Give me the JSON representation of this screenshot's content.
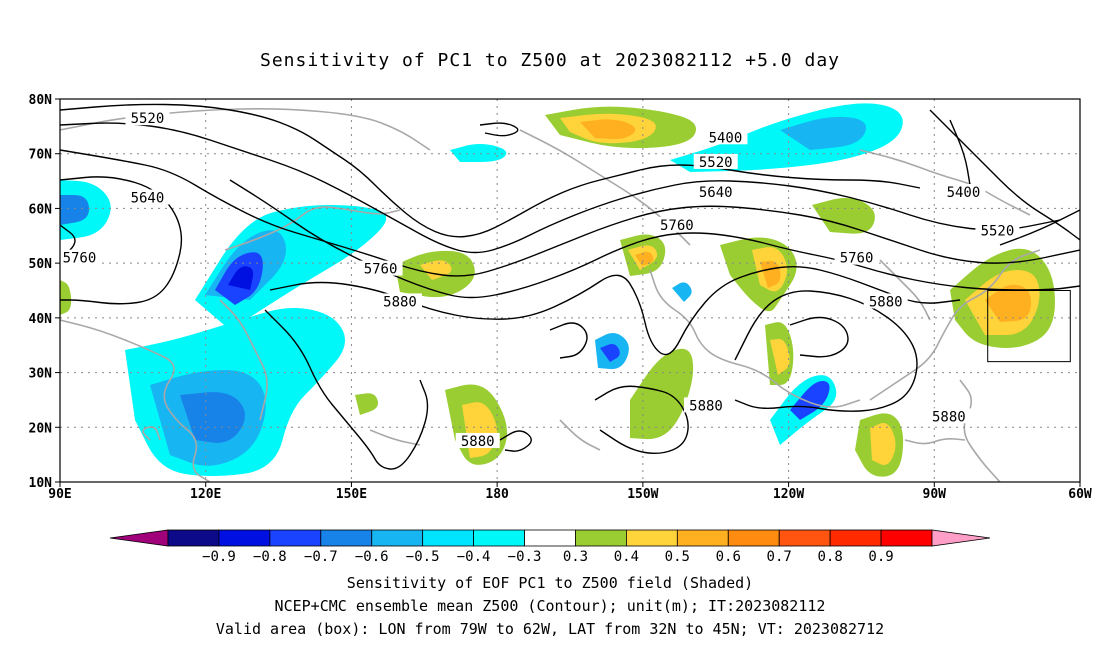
{
  "title": "Sensitivity of PC1 to Z500 at 2023082112 +5.0 day",
  "axes": {
    "lat_labels": [
      "80N",
      "70N",
      "60N",
      "50N",
      "40N",
      "30N",
      "20N",
      "10N"
    ],
    "lon_labels": [
      "90E",
      "120E",
      "150E",
      "180",
      "150W",
      "120W",
      "90W",
      "60W"
    ],
    "lat_range": [
      10,
      80
    ],
    "lon_range": [
      90,
      300
    ]
  },
  "contours": {
    "labels": [
      {
        "text": "5520",
        "lon": 108,
        "lat": 76.5
      },
      {
        "text": "5640",
        "lon": 108,
        "lat": 62
      },
      {
        "text": "5760",
        "lon": 94,
        "lat": 51
      },
      {
        "text": "5760",
        "lon": 156,
        "lat": 49
      },
      {
        "text": "5880",
        "lon": 160,
        "lat": 43
      },
      {
        "text": "5880",
        "lon": 176,
        "lat": 17.5
      },
      {
        "text": "5400",
        "lon": 227,
        "lat": 73
      },
      {
        "text": "5520",
        "lon": 225,
        "lat": 68.5
      },
      {
        "text": "5640",
        "lon": 225,
        "lat": 63
      },
      {
        "text": "5760",
        "lon": 217,
        "lat": 57
      },
      {
        "text": "5880",
        "lon": 223,
        "lat": 24
      },
      {
        "text": "5760",
        "lon": 254,
        "lat": 51
      },
      {
        "text": "5880",
        "lon": 260,
        "lat": 43
      },
      {
        "text": "5880",
        "lon": 273,
        "lat": 22
      },
      {
        "text": "5400",
        "lon": 276,
        "lat": 63
      },
      {
        "text": "5520",
        "lon": 283,
        "lat": 56
      }
    ]
  },
  "valid_box": {
    "lon_west": 281,
    "lon_east": 298,
    "lat_south": 32,
    "lat_north": 45
  },
  "colorbar": {
    "colors": [
      "#a0007a",
      "#0d0a8a",
      "#0010e0",
      "#1a43ff",
      "#1782e8",
      "#18b5f3",
      "#00e5ff",
      "#00f8f8",
      "#ffffff",
      "#9acd32",
      "#ffd43b",
      "#ffb020",
      "#ff8c10",
      "#ff5510",
      "#ff2a00",
      "#ff0000",
      "#ff9ec6"
    ],
    "labels": [
      "−0.9",
      "−0.8",
      "−0.7",
      "−0.6",
      "−0.5",
      "−0.4",
      "−0.3",
      "0.3",
      "0.4",
      "0.5",
      "0.6",
      "0.7",
      "0.8",
      "0.9"
    ]
  },
  "captions": {
    "line1": "Sensitivity of EOF PC1 to Z500 field (Shaded)",
    "line2": "NCEP+CMC ensemble mean Z500 (Contour); unit(m); IT:2023082112",
    "line3": "Valid area (box): LON from 79W to 62W, LAT from 32N to 45N; VT: 2023082712"
  },
  "colors": {
    "contour": "#000000",
    "coast": "#a8a8a8",
    "grid": "#888888"
  }
}
